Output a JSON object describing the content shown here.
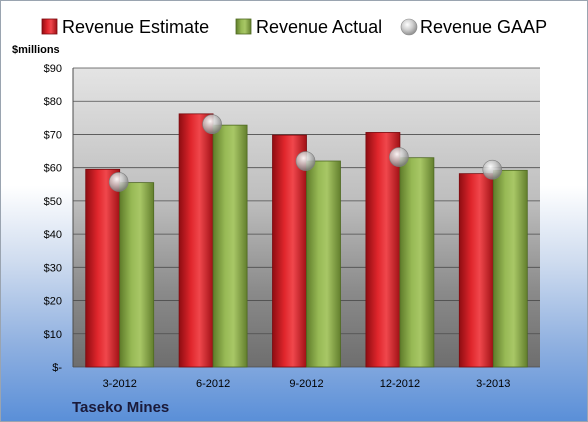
{
  "chart_data": {
    "type": "bar",
    "ylabel": "$millions",
    "ylim": [
      0,
      90
    ],
    "yticks": [
      0,
      10,
      20,
      30,
      40,
      50,
      60,
      70,
      80,
      90
    ],
    "ytick_labels": [
      "$-",
      "$10",
      "$20",
      "$30",
      "$40",
      "$50",
      "$60",
      "$70",
      "$80",
      "$90"
    ],
    "categories": [
      "3-2012",
      "6-2012",
      "9-2012",
      "12-2012",
      "3-2013"
    ],
    "series": [
      {
        "name": "Revenue Estimate",
        "kind": "bar",
        "color": "#d42027",
        "values": [
          59.5,
          76.2,
          69.8,
          70.6,
          58.2
        ]
      },
      {
        "name": "Revenue Actual",
        "kind": "bar",
        "color": "#8eb04a",
        "values": [
          55.5,
          72.8,
          62.0,
          63.0,
          59.2
        ]
      },
      {
        "name": "Revenue GAAP",
        "kind": "marker",
        "color": "#c8c8c8",
        "values": [
          55.7,
          73.1,
          62.0,
          63.2,
          59.4
        ]
      }
    ],
    "grid": true,
    "legend_position": "top",
    "footer": "Taseko Mines"
  }
}
